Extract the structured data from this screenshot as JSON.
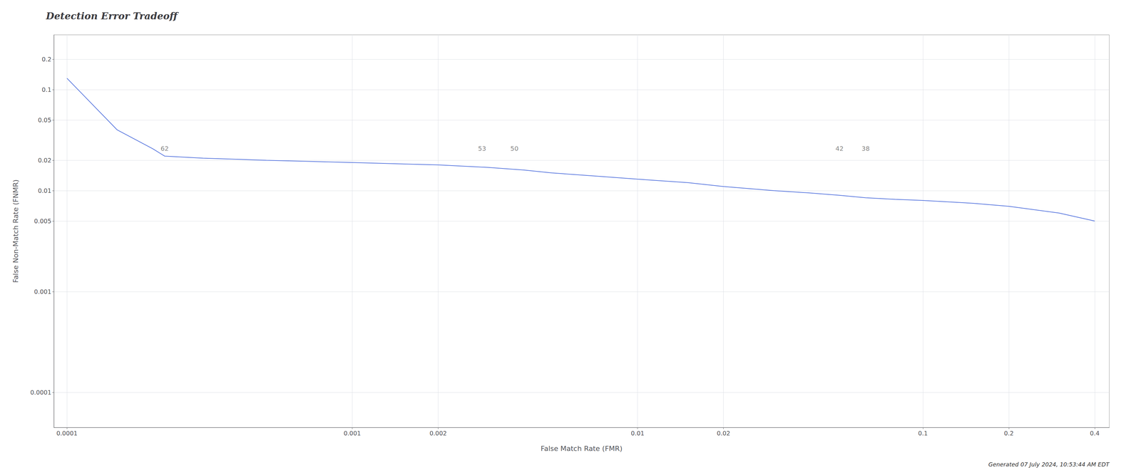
{
  "chart_data": {
    "type": "line",
    "title": "Detection Error Tradeoff",
    "xlabel": "False Match Rate (FMR)",
    "ylabel": "False Non-Match Rate (FNMR)",
    "footnote": "Generated 07 July 2024, 10:53:44 AM EDT",
    "x": [
      0.0001,
      0.00015,
      0.0002,
      0.00022,
      0.0003,
      0.0005,
      0.001,
      0.002,
      0.003,
      0.004,
      0.005,
      0.007,
      0.01,
      0.015,
      0.02,
      0.03,
      0.04,
      0.051,
      0.063,
      0.08,
      0.1,
      0.15,
      0.2,
      0.3,
      0.4
    ],
    "values": [
      0.13,
      0.04,
      0.026,
      0.022,
      0.021,
      0.02,
      0.019,
      0.018,
      0.017,
      0.016,
      0.015,
      0.014,
      0.013,
      0.012,
      0.011,
      0.01,
      0.0095,
      0.009,
      0.0085,
      0.0082,
      0.008,
      0.0075,
      0.007,
      0.006,
      0.005
    ],
    "xlim": [
      9e-05,
      0.45
    ],
    "ylim": [
      4.5e-05,
      0.35
    ],
    "xticks": [
      0.0001,
      0.001,
      0.002,
      0.01,
      0.02,
      0.1,
      0.2,
      0.4
    ],
    "yticks": [
      0.0001,
      0.001,
      0.005,
      0.01,
      0.02,
      0.05,
      0.1,
      0.2
    ],
    "log": true,
    "grid": true,
    "annotations": [
      {
        "text": "62",
        "x": 0.00022,
        "y": 0.022
      },
      {
        "text": "53",
        "x": 0.00285,
        "y": 0.022
      },
      {
        "text": "50",
        "x": 0.0037,
        "y": 0.022
      },
      {
        "text": "42",
        "x": 0.051,
        "y": 0.022
      },
      {
        "text": "38",
        "x": 0.063,
        "y": 0.022
      }
    ]
  }
}
